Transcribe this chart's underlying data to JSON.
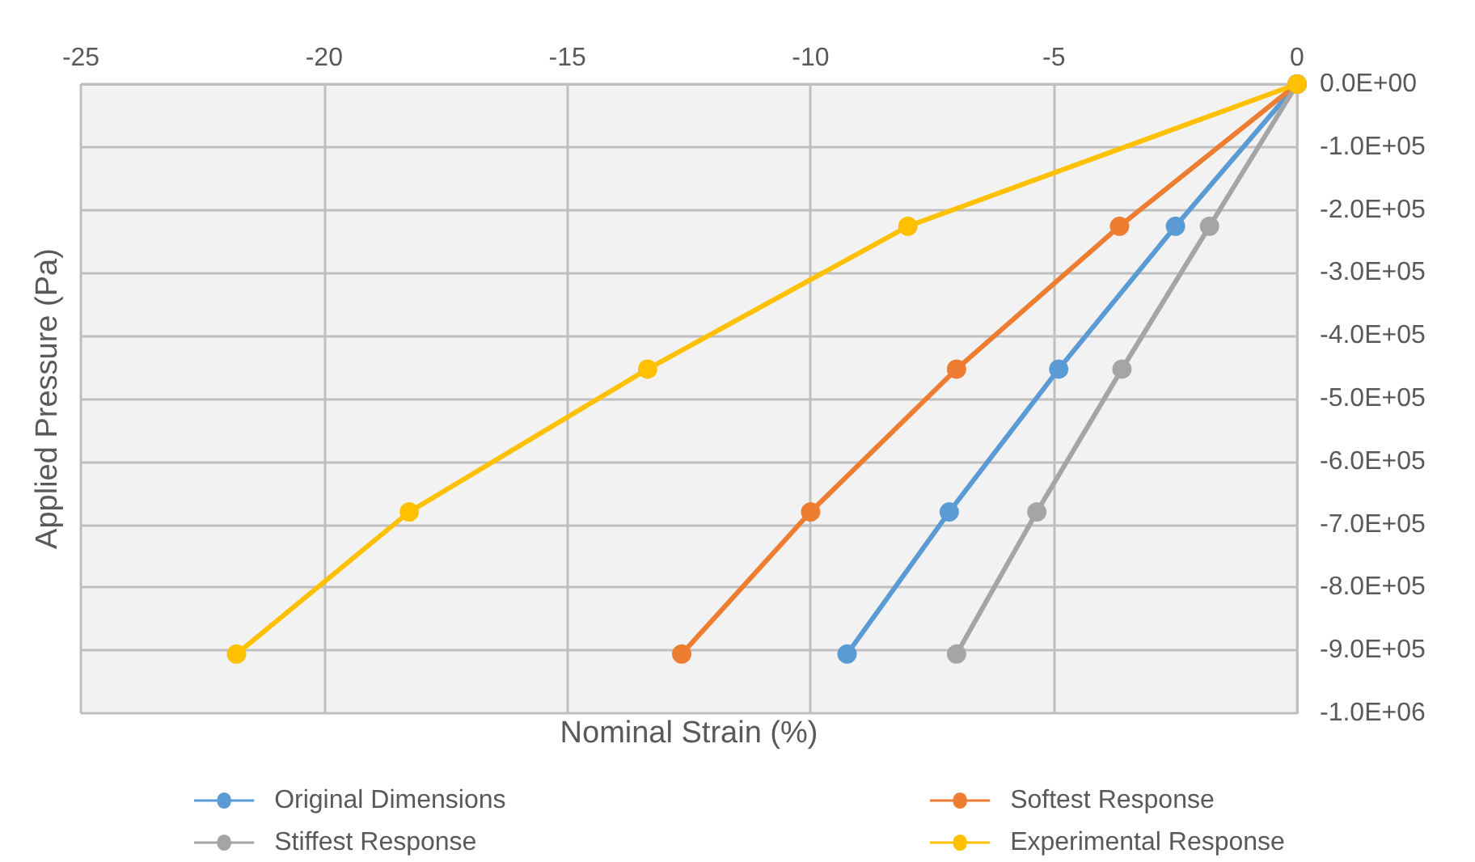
{
  "chart_data": {
    "type": "line",
    "xlabel": "Nominal Strain (%)",
    "ylabel": "Applied Pressure (Pa)",
    "xlim": [
      -25,
      0
    ],
    "xticks": [
      -25,
      -20,
      -15,
      -10,
      -5,
      0
    ],
    "ylim": [
      -1000000,
      0
    ],
    "yticks": [
      {
        "value": 0,
        "label": "0.0E+00"
      },
      {
        "value": -100000,
        "label": "-1.0E+05"
      },
      {
        "value": -200000,
        "label": "-2.0E+05"
      },
      {
        "value": -300000,
        "label": "-3.0E+05"
      },
      {
        "value": -400000,
        "label": "-4.0E+05"
      },
      {
        "value": -500000,
        "label": "-5.0E+05"
      },
      {
        "value": -600000,
        "label": "-6.0E+05"
      },
      {
        "value": -700000,
        "label": "-7.0E+05"
      },
      {
        "value": -800000,
        "label": "-8.0E+05"
      },
      {
        "value": -900000,
        "label": "-9.0E+05"
      },
      {
        "value": -1000000,
        "label": "-1.0E+06"
      }
    ],
    "series": [
      {
        "name": "Original Dimensions",
        "color": "#5b9bd5",
        "x": [
          0,
          -2.5,
          -4.9,
          -7.15,
          -9.25
        ],
        "values": [
          0,
          -226000,
          -453000,
          -680000,
          -906000
        ]
      },
      {
        "name": "Softest Response",
        "color": "#ed7d31",
        "x": [
          0,
          -3.65,
          -7.0,
          -10.0,
          -12.65
        ],
        "values": [
          0,
          -226000,
          -453000,
          -680000,
          -906000
        ]
      },
      {
        "name": "Stiffest Response",
        "color": "#a5a5a5",
        "x": [
          0,
          -1.8,
          -3.6,
          -5.35,
          -7.0
        ],
        "values": [
          0,
          -226000,
          -453000,
          -680000,
          -906000
        ]
      },
      {
        "name": "Experimental Response",
        "color": "#ffc000",
        "x": [
          0,
          -8.0,
          -13.35,
          -18.25,
          -21.8
        ],
        "values": [
          0,
          -226000,
          -453000,
          -680000,
          -906000
        ]
      }
    ],
    "grid": true,
    "legend": "bottom",
    "marker": "circle",
    "line_style": "solid"
  }
}
